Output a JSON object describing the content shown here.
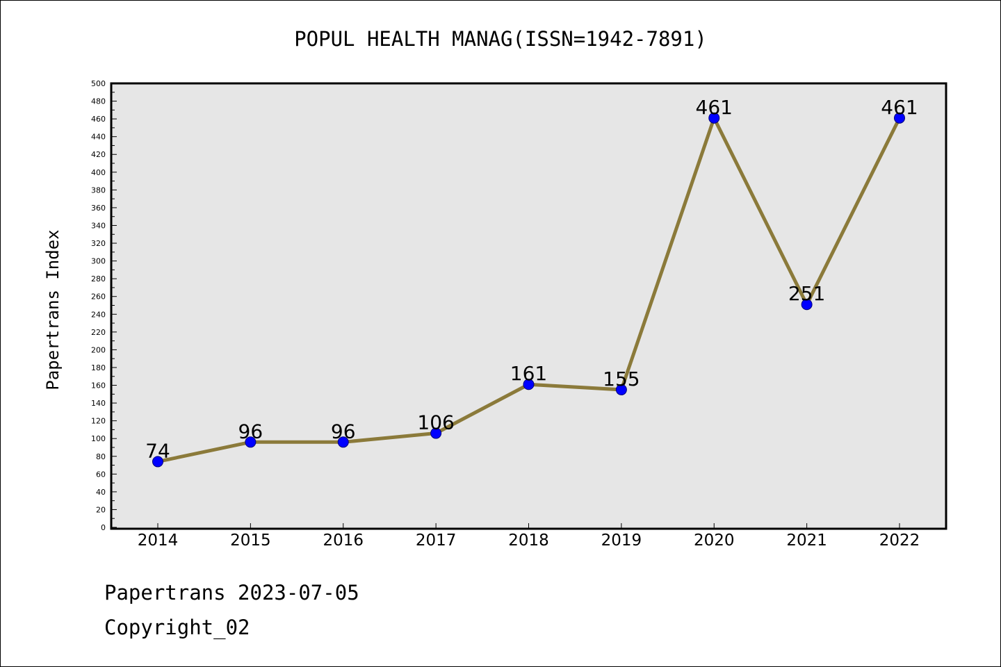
{
  "chart_data": {
    "type": "line",
    "title": "POPUL HEALTH MANAG(ISSN=1942-7891)",
    "xlabel": "",
    "ylabel": "Papertrans Index",
    "categories": [
      "2014",
      "2015",
      "2016",
      "2017",
      "2018",
      "2019",
      "2020",
      "2021",
      "2022"
    ],
    "series": [
      {
        "values": [
          74,
          96,
          96,
          106,
          161,
          155,
          461,
          251,
          461
        ]
      }
    ],
    "data_labels": [
      "74",
      "96",
      "96",
      "106",
      "161",
      "155",
      "461",
      "251",
      "461"
    ],
    "ylim": [
      0,
      500
    ],
    "y_major_step": 20,
    "y_minor_step": 10,
    "grid": false,
    "colors": {
      "line": "#8b7a3a",
      "marker_fill": "#0000ff",
      "marker_stroke": "#00007a",
      "plot_background": "#e6e6e6"
    }
  },
  "footer": {
    "date_line": "Papertrans 2023-07-05",
    "copyright_line": "Copyright_02"
  }
}
